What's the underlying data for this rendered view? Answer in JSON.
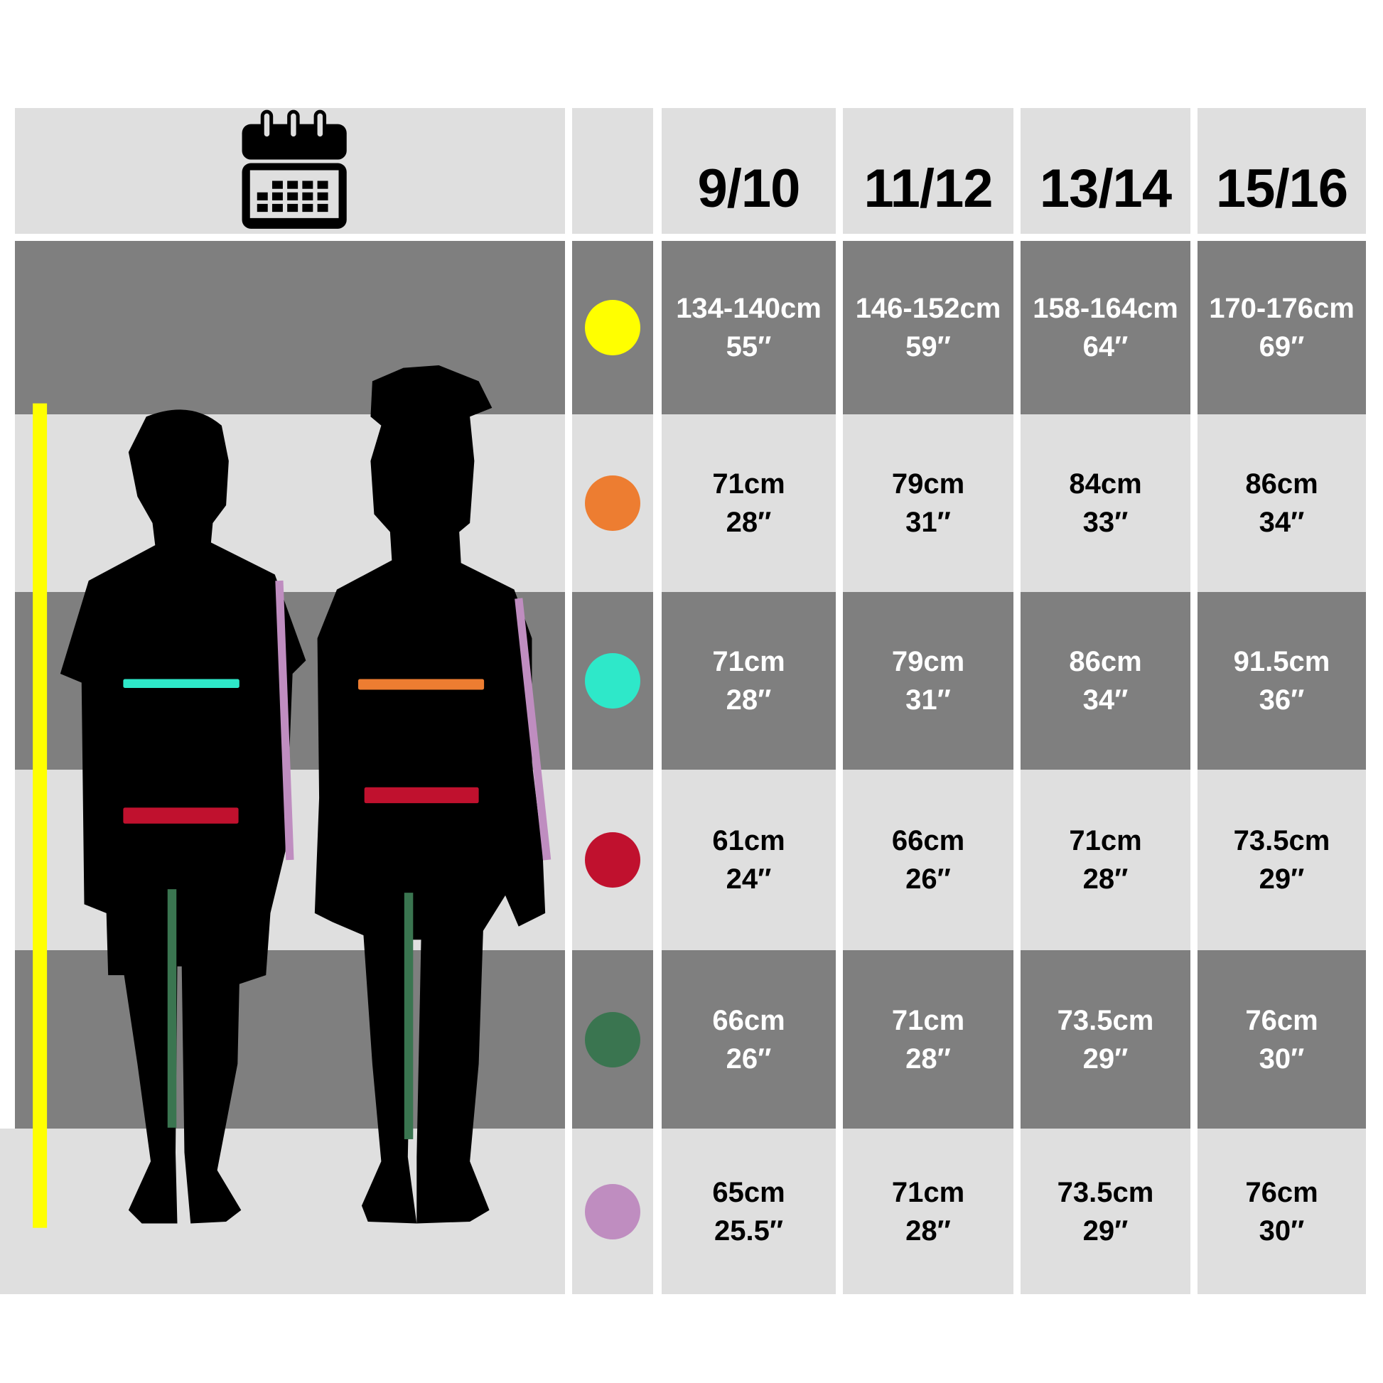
{
  "header": {
    "icon": "calendar-icon",
    "sizes": [
      "9/10",
      "11/12",
      "13/14",
      "15/16"
    ]
  },
  "rows": [
    {
      "measure_color": "#ffff00",
      "values": [
        {
          "cm": "134-140cm",
          "in": "55″"
        },
        {
          "cm": "146-152cm",
          "in": "59″"
        },
        {
          "cm": "158-164cm",
          "in": "64″"
        },
        {
          "cm": "170-176cm",
          "in": "69″"
        }
      ]
    },
    {
      "measure_color": "#ed7d31",
      "values": [
        {
          "cm": "71cm",
          "in": "28″"
        },
        {
          "cm": "79cm",
          "in": "31″"
        },
        {
          "cm": "84cm",
          "in": "33″"
        },
        {
          "cm": "86cm",
          "in": "34″"
        }
      ]
    },
    {
      "measure_color": "#2ee8c9",
      "values": [
        {
          "cm": "71cm",
          "in": "28″"
        },
        {
          "cm": "79cm",
          "in": "31″"
        },
        {
          "cm": "86cm",
          "in": "34″"
        },
        {
          "cm": "91.5cm",
          "in": "36″"
        }
      ]
    },
    {
      "measure_color": "#c0112e",
      "values": [
        {
          "cm": "61cm",
          "in": "24″"
        },
        {
          "cm": "66cm",
          "in": "26″"
        },
        {
          "cm": "71cm",
          "in": "28″"
        },
        {
          "cm": "73.5cm",
          "in": "29″"
        }
      ]
    },
    {
      "measure_color": "#3a7550",
      "values": [
        {
          "cm": "66cm",
          "in": "26″"
        },
        {
          "cm": "71cm",
          "in": "28″"
        },
        {
          "cm": "73.5cm",
          "in": "29″"
        },
        {
          "cm": "76cm",
          "in": "30″"
        }
      ]
    },
    {
      "measure_color": "#bf8dc0",
      "values": [
        {
          "cm": "65cm",
          "in": "25.5″"
        },
        {
          "cm": "71cm",
          "in": "28″"
        },
        {
          "cm": "73.5cm",
          "in": "29″"
        },
        {
          "cm": "76cm",
          "in": "30″"
        }
      ]
    }
  ]
}
